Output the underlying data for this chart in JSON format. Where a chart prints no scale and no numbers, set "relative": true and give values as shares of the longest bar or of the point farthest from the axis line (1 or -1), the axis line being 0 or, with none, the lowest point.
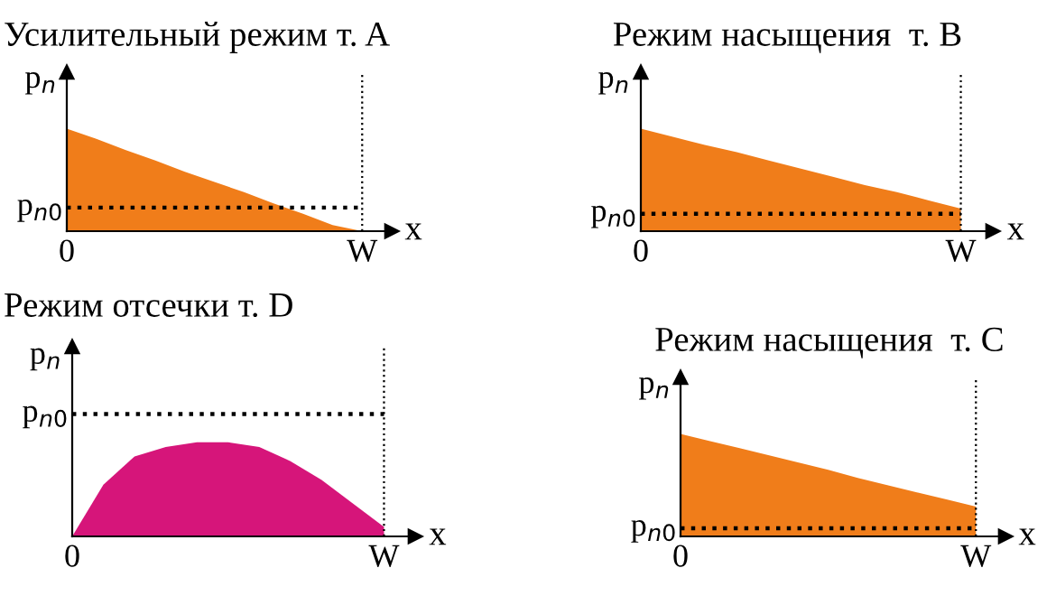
{
  "chart_data": [
    {
      "type": "area",
      "title": "Усилительный режим т. A",
      "ylabel": "p$_{n}$",
      "xlabel": "x",
      "relative": true,
      "legend": false,
      "grid": false,
      "categories": [
        "0",
        null,
        null,
        null,
        null,
        null,
        null,
        null,
        null,
        null,
        "W"
      ],
      "series": [
        {
          "color": "#f07d1a",
          "values": [
            1,
            0.9,
            0.79,
            0.69,
            0.58,
            0.48,
            0.38,
            0.27,
            0.17,
            0.06,
            0
          ]
        }
      ],
      "ref_lines": [
        {
          "axis": "y",
          "value": 0.23,
          "label": "p$_{n0}$",
          "line_style": "dotted"
        },
        {
          "axis": "x",
          "value": "W",
          "label": null,
          "line_style": "dotted"
        }
      ]
    },
    {
      "type": "area",
      "title": "Режим насыщения  т. B",
      "ylabel": "p$_{n}$",
      "xlabel": "x",
      "relative": true,
      "legend": false,
      "grid": false,
      "categories": [
        "0",
        null,
        null,
        null,
        null,
        null,
        null,
        null,
        null,
        null,
        "W"
      ],
      "series": [
        {
          "color": "#f07d1a",
          "values": [
            1,
            0.92,
            0.84,
            0.77,
            0.69,
            0.61,
            0.53,
            0.45,
            0.38,
            0.3,
            0.22
          ]
        }
      ],
      "ref_lines": [
        {
          "axis": "y",
          "value": 0.17,
          "label": "p$_{n0}$",
          "line_style": "dotted"
        },
        {
          "axis": "x",
          "value": "W",
          "label": null,
          "line_style": "dotted"
        }
      ]
    },
    {
      "type": "area",
      "title": "Режим отсечки т. D",
      "ylabel": "p$_{n}$",
      "xlabel": "x",
      "relative": true,
      "legend": false,
      "grid": false,
      "categories": [
        "0",
        null,
        null,
        null,
        null,
        null,
        null,
        null,
        null,
        null,
        "W"
      ],
      "series": [
        {
          "color": "#d6157a",
          "values": [
            0,
            0.55,
            0.85,
            0.95,
            1,
            1,
            0.95,
            0.8,
            0.6,
            0.35,
            0.1
          ]
        }
      ],
      "ref_lines": [
        {
          "axis": "y",
          "value": 1.3,
          "label": "p$_{n0}$",
          "line_style": "dotted"
        },
        {
          "axis": "x",
          "value": "W",
          "label": null,
          "line_style": "dotted"
        }
      ]
    },
    {
      "type": "area",
      "title": "Режим насыщения  т. C",
      "ylabel": "p$_{n}$",
      "xlabel": "x",
      "relative": true,
      "legend": false,
      "grid": false,
      "categories": [
        "0",
        null,
        null,
        null,
        null,
        null,
        null,
        null,
        null,
        null,
        "W"
      ],
      "series": [
        {
          "color": "#f07d1a",
          "values": [
            1,
            0.93,
            0.86,
            0.79,
            0.72,
            0.65,
            0.57,
            0.5,
            0.43,
            0.36,
            0.29
          ]
        }
      ],
      "ref_lines": [
        {
          "axis": "y",
          "value": 0.08,
          "label": "p$_{n0}$",
          "line_style": "dotted"
        },
        {
          "axis": "x",
          "value": "W",
          "label": null,
          "line_style": "dotted"
        }
      ]
    }
  ]
}
